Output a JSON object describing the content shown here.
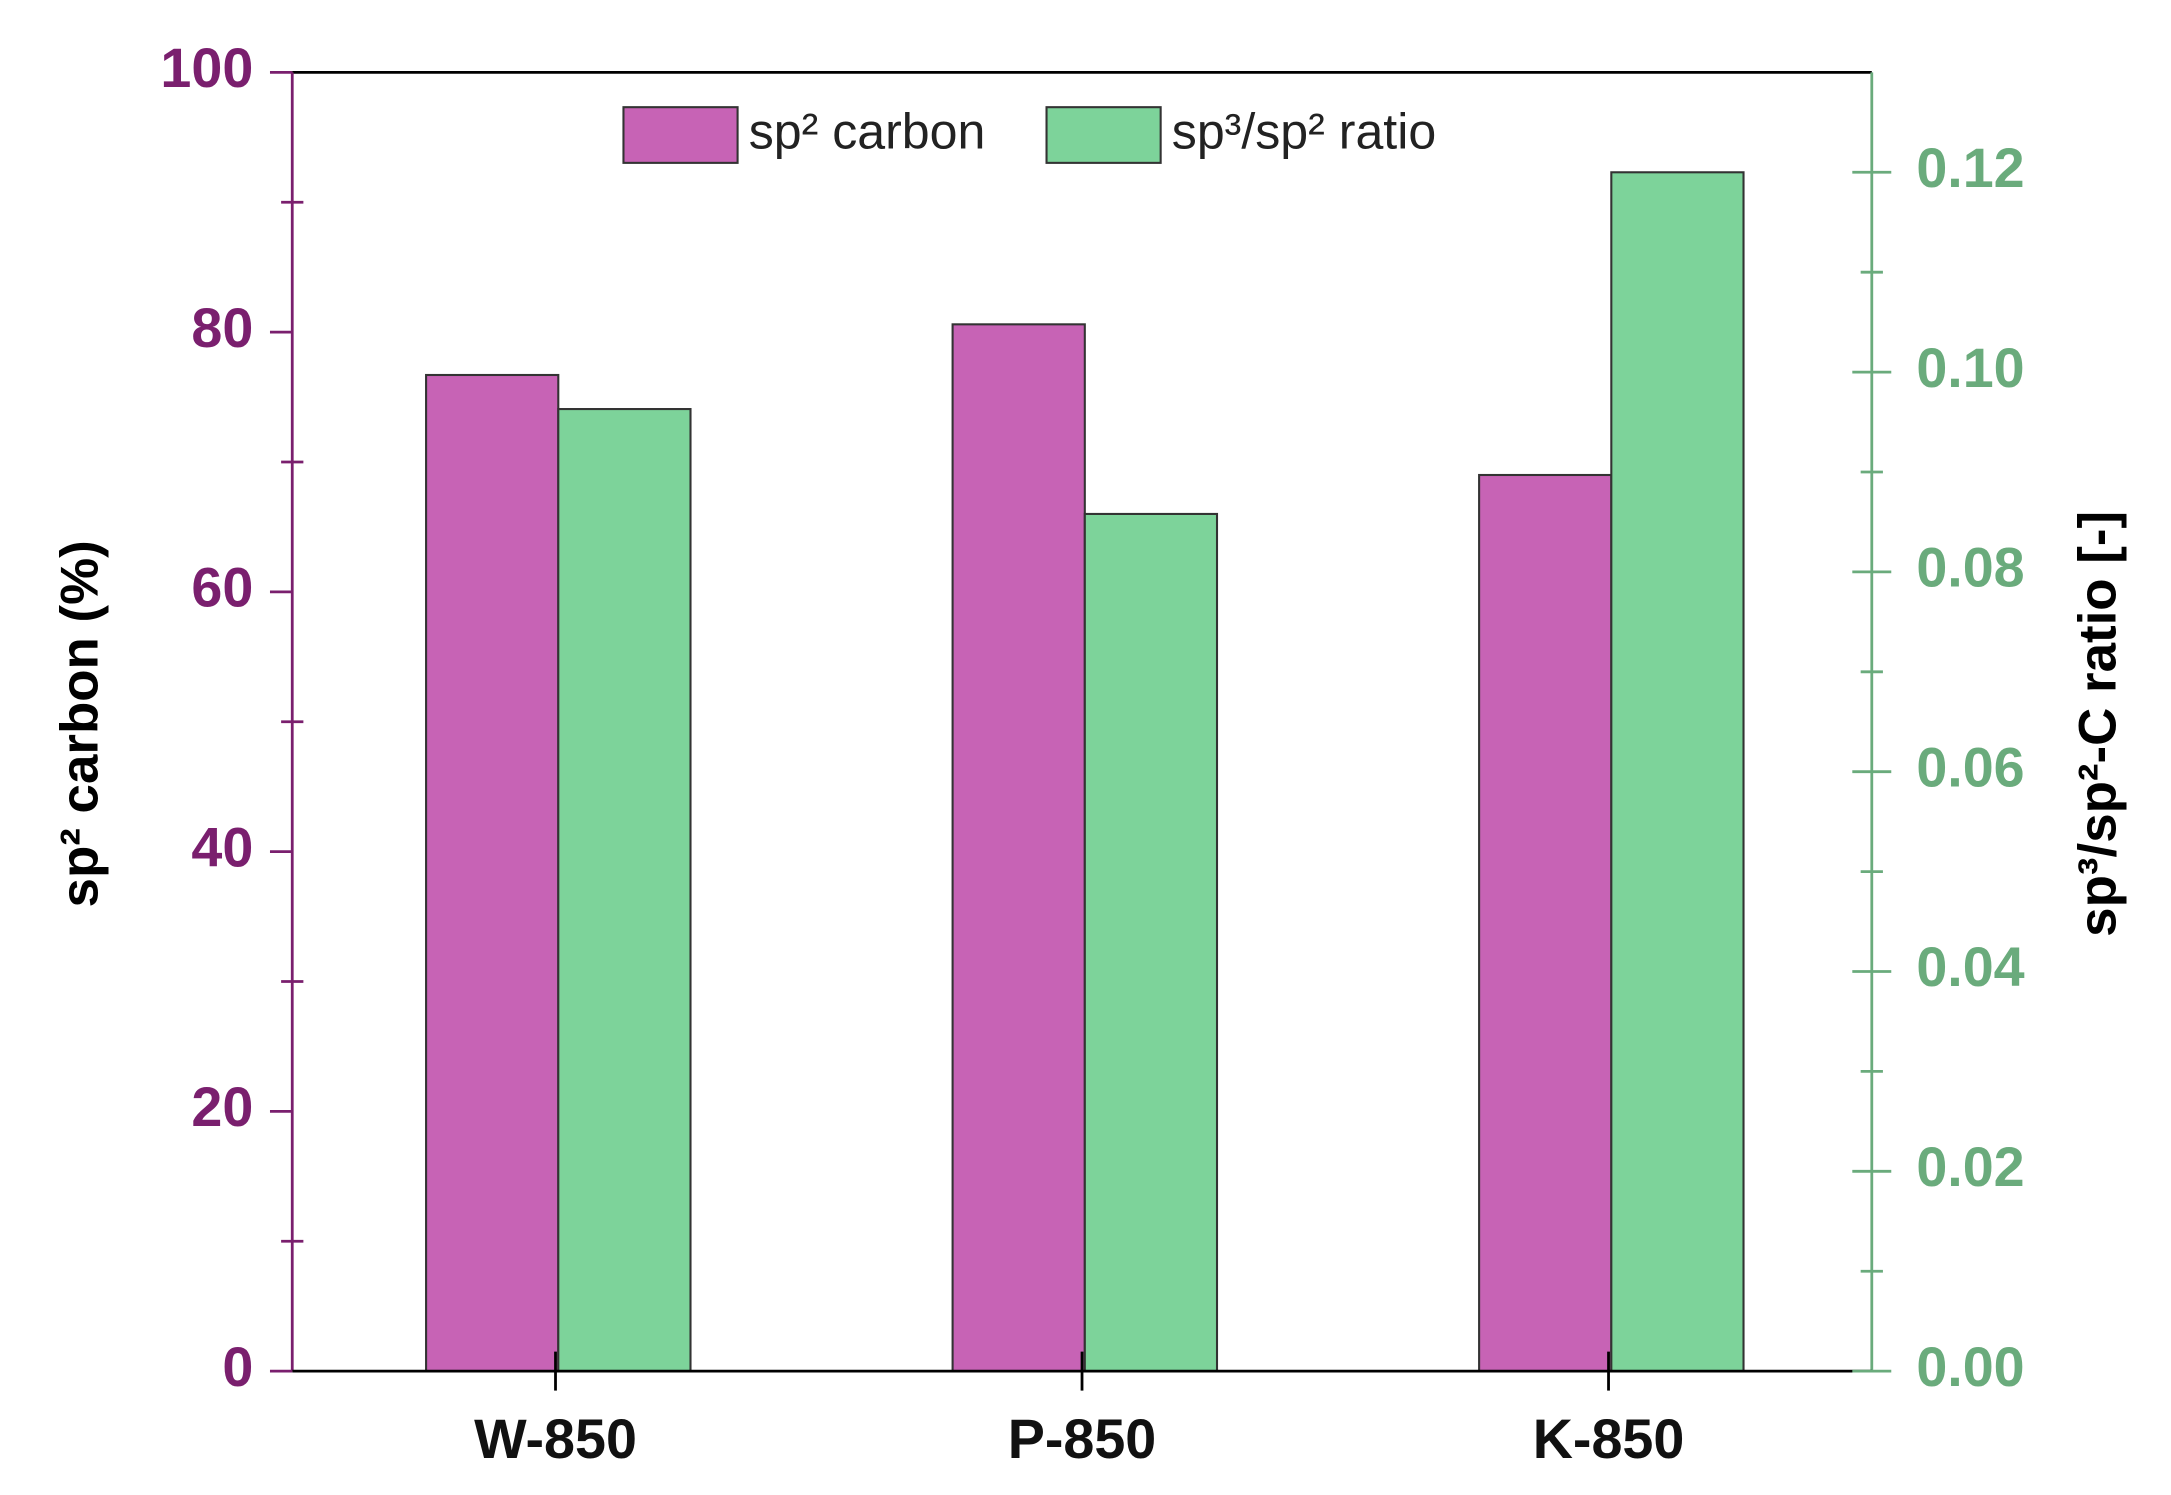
{
  "chart_data": {
    "type": "bar",
    "categories": [
      "W-850",
      "P-850",
      "K-850"
    ],
    "series": [
      {
        "name": "sp² carbon",
        "color": "#c763b5",
        "values": [
          76.7,
          80.6,
          69.0
        ]
      },
      {
        "name": "sp³/sp² ratio",
        "color": "#7dd39a",
        "values": [
          0.0963,
          0.0858,
          0.12
        ],
        "axis": "y2"
      }
    ],
    "ylabel": "sp² carbon (%)",
    "y2label": "sp³/sp²-C ratio [-]",
    "ylim": [
      0,
      100
    ],
    "yticks": [
      0,
      20,
      40,
      60,
      80,
      100
    ],
    "yminorticks": [
      10,
      30,
      50,
      70,
      90
    ],
    "y2lim": [
      0,
      0.13
    ],
    "y2ticks": [
      {
        "value": 0,
        "label": "0.00"
      },
      {
        "value": 0.02,
        "label": "0.02"
      },
      {
        "value": 0.04,
        "label": "0.04"
      },
      {
        "value": 0.06,
        "label": "0.06"
      },
      {
        "value": 0.08,
        "label": "0.08"
      },
      {
        "value": 0.1,
        "label": "0.10"
      },
      {
        "value": 0.12,
        "label": "0.12"
      }
    ],
    "y2minorticks": [
      0.01,
      0.03,
      0.05,
      0.07,
      0.09,
      0.11
    ],
    "y_color": "#7a1f6e",
    "y2_color": "#6aab7c",
    "legend": "top",
    "grid": false
  }
}
